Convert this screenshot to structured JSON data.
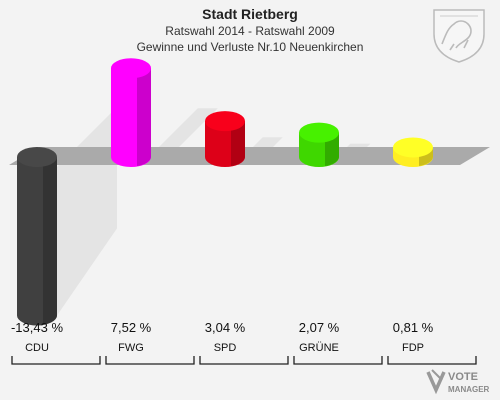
{
  "header": {
    "title": "Stadt Rietberg",
    "subtitle": "Ratswahl 2014 - Ratswahl 2009",
    "subtitle2": "Gewinne und Verluste Nr.10 Neuenkirchen"
  },
  "branding": {
    "logo_line1": "VOTE",
    "logo_line2": "MANAGER"
  },
  "chart_data": {
    "type": "bar",
    "title": "Stadt Rietberg",
    "categories": [
      "CDU",
      "FWG",
      "SPD",
      "GRÜNE",
      "FDP"
    ],
    "values": [
      -13.43,
      7.52,
      3.04,
      2.07,
      0.81
    ],
    "value_labels": [
      "-13,43 %",
      "7,52 %",
      "3,04 %",
      "2,07 %",
      "0,81 %"
    ],
    "colors": [
      "#404040",
      "#ff00ff",
      "#dd0018",
      "#3fd700",
      "#ffee22"
    ],
    "ylim": [
      -13.43,
      7.52
    ],
    "grid": false
  }
}
